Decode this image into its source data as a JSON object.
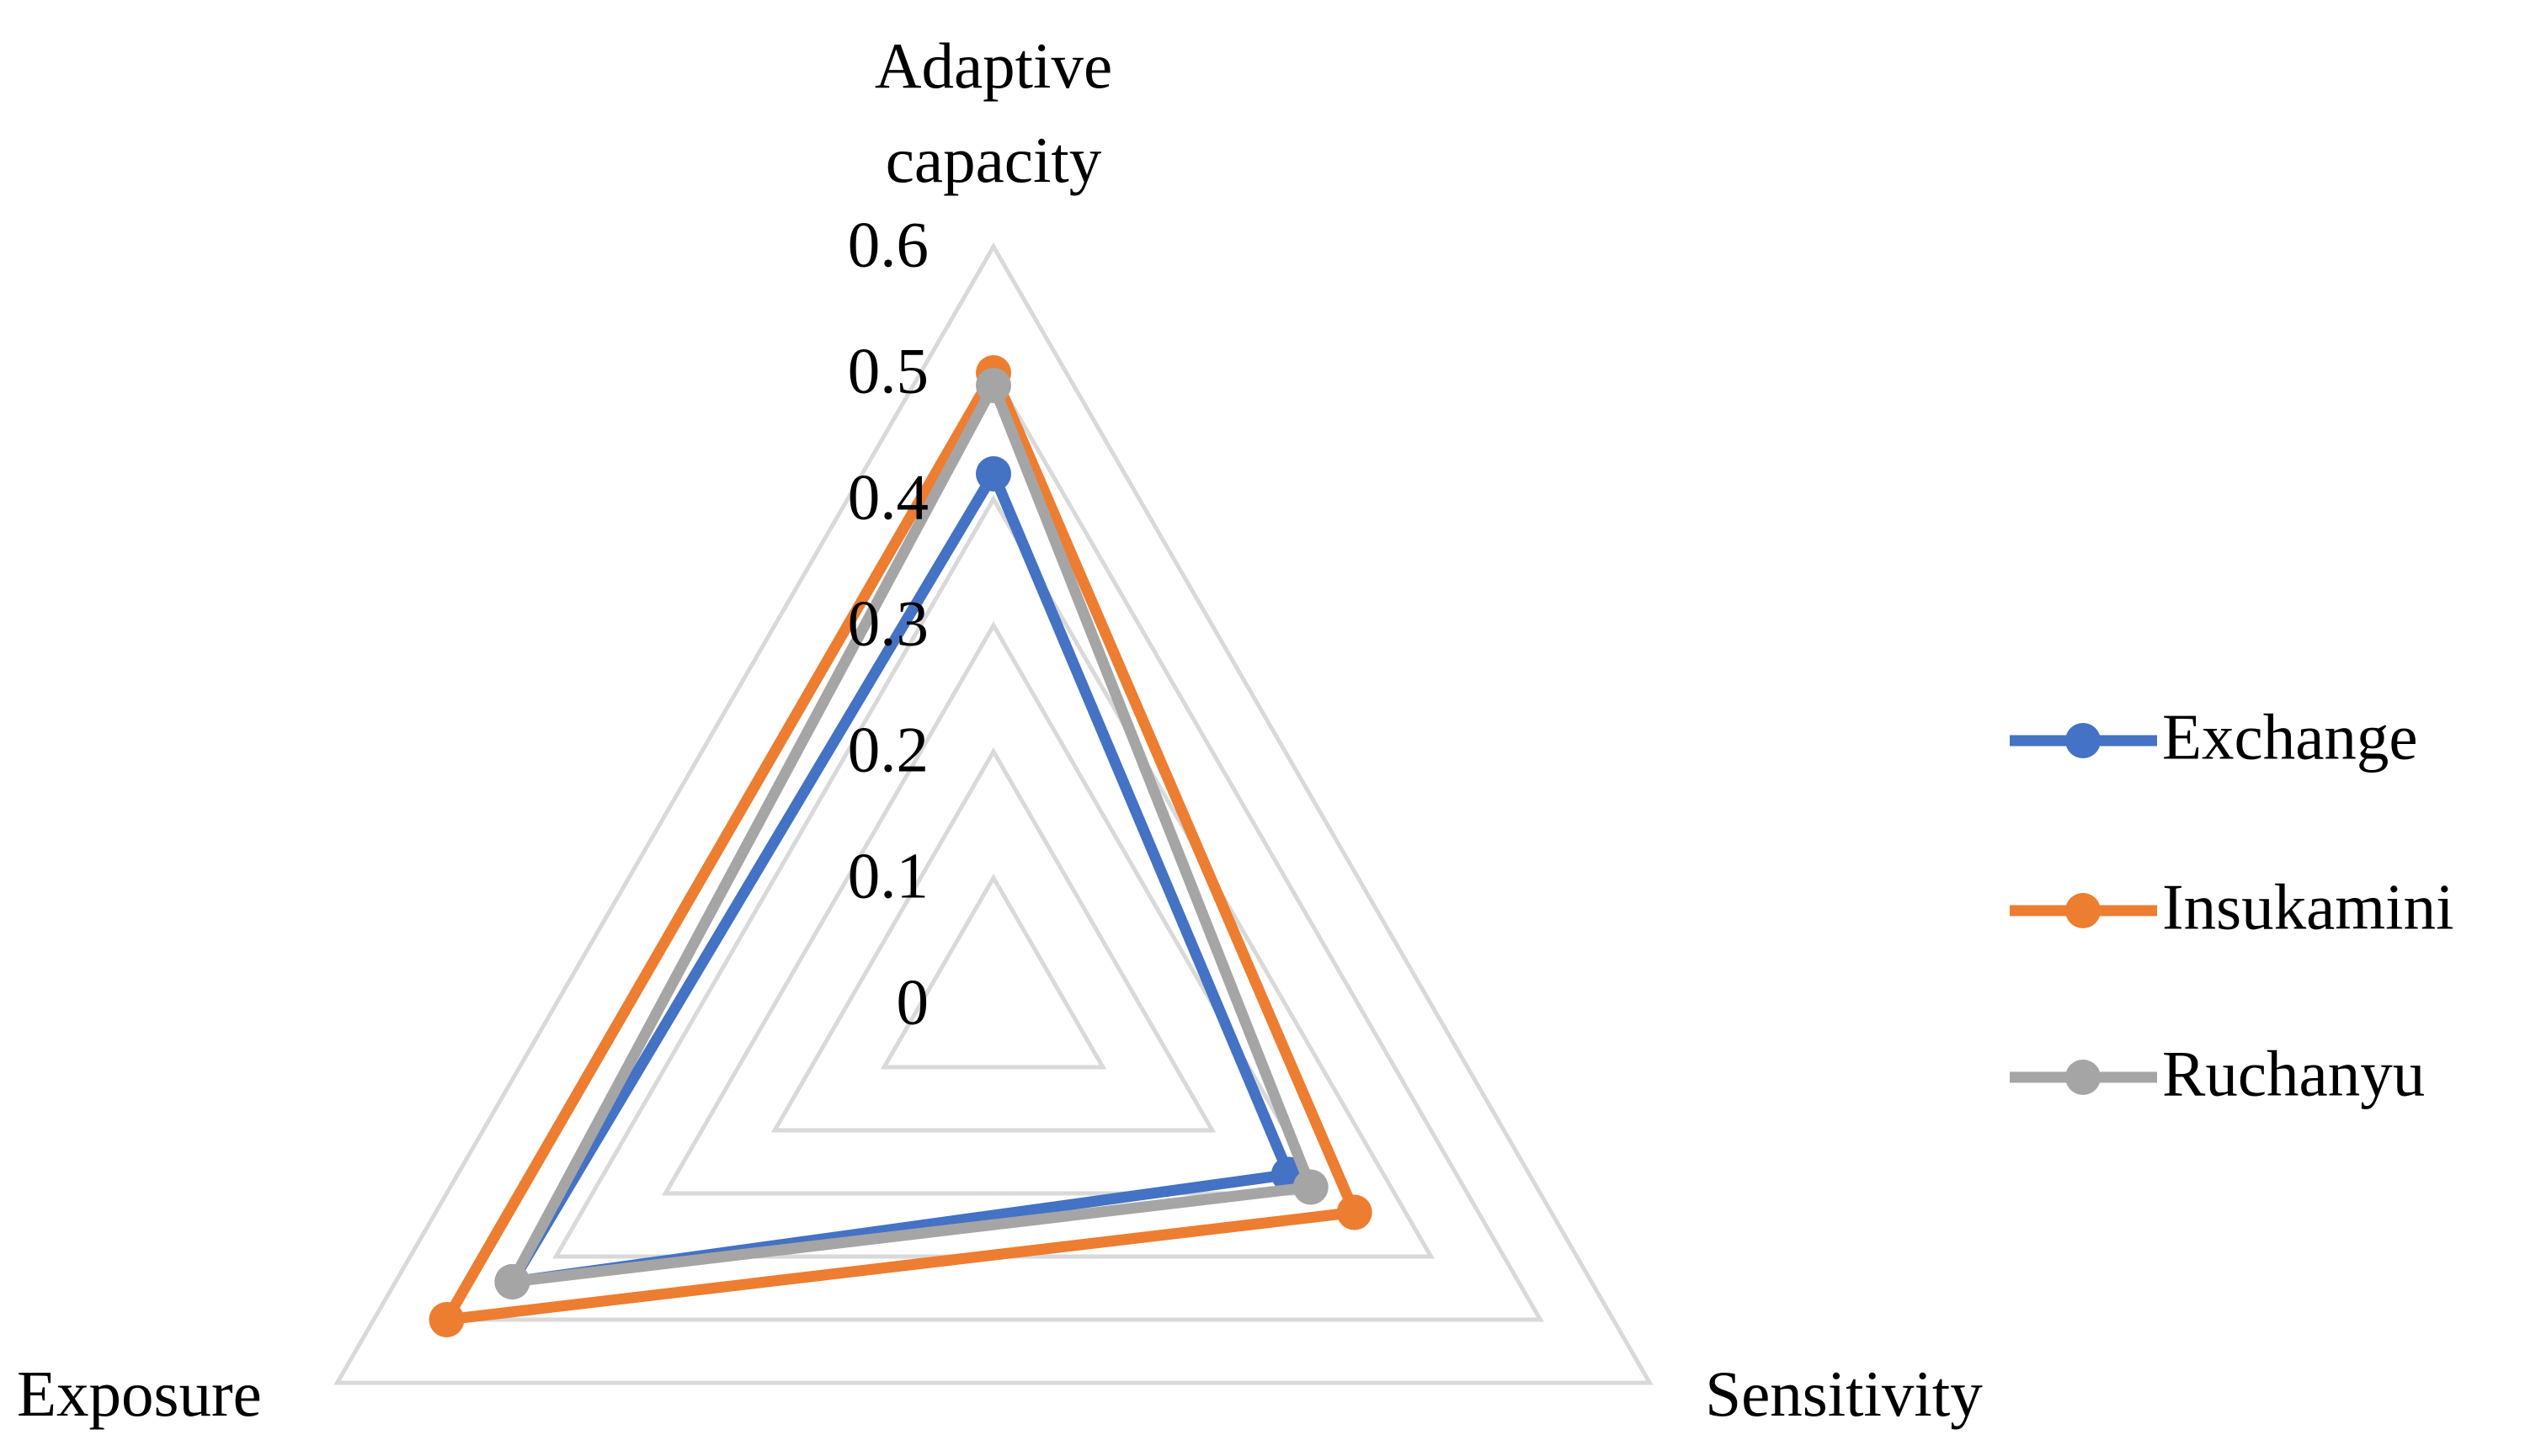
{
  "chart_data": {
    "type": "radar",
    "categories": [
      "Adaptive capacity",
      "Sensitivity",
      "Exposure"
    ],
    "series": [
      {
        "name": "Exchange",
        "color": "#4472c4",
        "values": [
          0.42,
          0.27,
          0.44
        ]
      },
      {
        "name": "Insukamini",
        "color": "#ed7d31",
        "values": [
          0.5,
          0.33,
          0.5
        ]
      },
      {
        "name": "Ruchanyu",
        "color": "#a5a5a5",
        "values": [
          0.49,
          0.29,
          0.44
        ]
      }
    ],
    "rlim": [
      0,
      0.6
    ],
    "rticks": [
      0,
      0.1,
      0.2,
      0.3,
      0.4,
      0.5,
      0.6
    ],
    "grid": true,
    "legend": "right"
  }
}
